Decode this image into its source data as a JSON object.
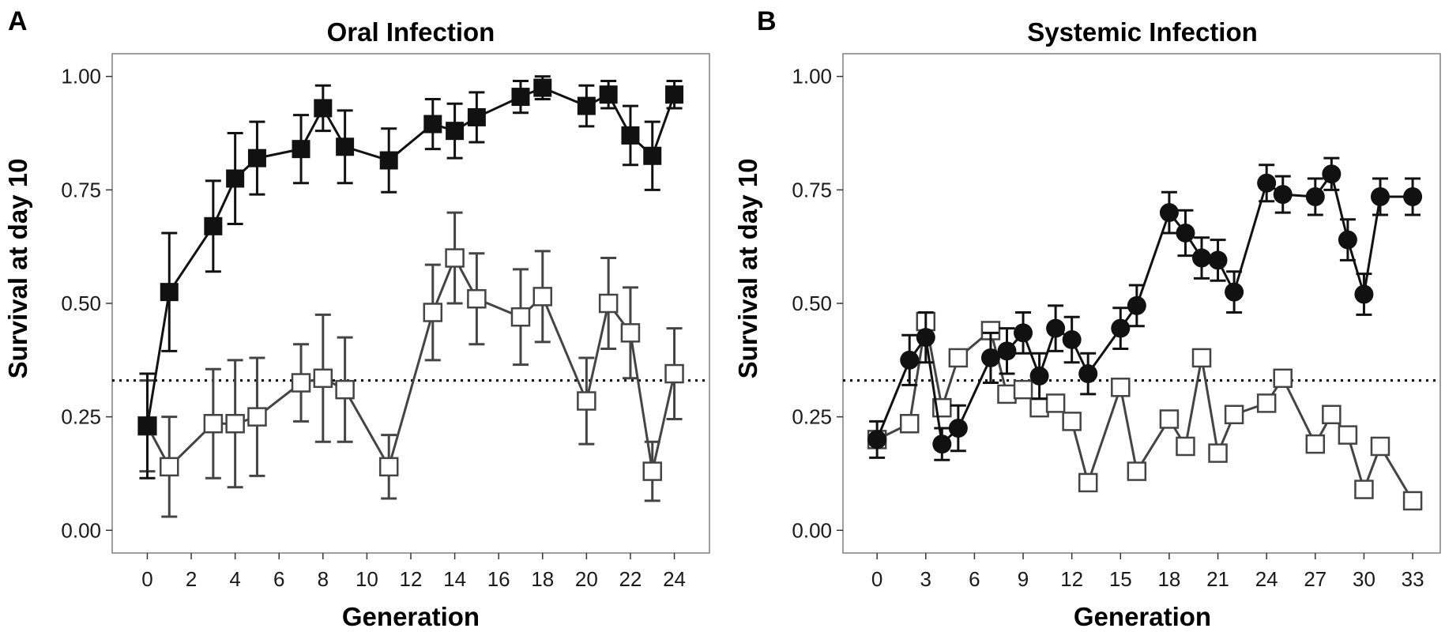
{
  "chart_data": [
    {
      "type": "line",
      "panel_label": "A",
      "title": "Oral Infection",
      "xlabel": "Generation",
      "ylabel": "Survival at day 10",
      "xlim": [
        -1.6,
        25.6
      ],
      "ylim": [
        -0.05,
        1.05
      ],
      "x_ticks": [
        0,
        2,
        4,
        6,
        8,
        10,
        12,
        14,
        16,
        18,
        20,
        22,
        24
      ],
      "y_ticks": [
        0,
        0.25,
        0.5,
        0.75,
        1.0
      ],
      "y_tick_labels": [
        "0.00",
        "0.25",
        "0.50",
        "0.75",
        "1.00"
      ],
      "reference_line": 0.33,
      "grid": false,
      "series": [
        {
          "marker": "filled-square",
          "color": "#111111",
          "x": [
            0,
            1,
            3,
            4,
            5,
            7,
            8,
            9,
            11,
            13,
            14,
            15,
            17,
            18,
            20,
            21,
            22,
            23,
            24
          ],
          "y": [
            0.23,
            0.525,
            0.67,
            0.775,
            0.82,
            0.84,
            0.93,
            0.845,
            0.815,
            0.895,
            0.88,
            0.91,
            0.955,
            0.975,
            0.935,
            0.96,
            0.87,
            0.825,
            0.96
          ],
          "err": [
            0.115,
            0.13,
            0.1,
            0.1,
            0.08,
            0.075,
            0.05,
            0.08,
            0.07,
            0.055,
            0.06,
            0.055,
            0.035,
            0.025,
            0.045,
            0.03,
            0.065,
            0.075,
            0.03
          ]
        },
        {
          "marker": "open-square",
          "color": "#444444",
          "x": [
            0,
            1,
            3,
            4,
            5,
            7,
            8,
            9,
            11,
            13,
            14,
            15,
            17,
            18,
            20,
            21,
            22,
            23,
            24
          ],
          "y": [
            0.23,
            0.14,
            0.235,
            0.235,
            0.25,
            0.325,
            0.335,
            0.31,
            0.14,
            0.48,
            0.6,
            0.51,
            0.47,
            0.515,
            0.285,
            0.5,
            0.435,
            0.13,
            0.345
          ],
          "err": [
            0.1,
            0.11,
            0.12,
            0.14,
            0.13,
            0.085,
            0.14,
            0.115,
            0.07,
            0.105,
            0.1,
            0.1,
            0.105,
            0.1,
            0.095,
            0.1,
            0.1,
            0.065,
            0.1
          ]
        }
      ]
    },
    {
      "type": "line",
      "panel_label": "B",
      "title": "Systemic Infection",
      "xlabel": "Generation",
      "ylabel": "Survival at day 10",
      "xlim": [
        -2.1,
        34.7
      ],
      "ylim": [
        -0.05,
        1.05
      ],
      "x_ticks": [
        0,
        3,
        6,
        9,
        12,
        15,
        18,
        21,
        24,
        27,
        30,
        33
      ],
      "y_ticks": [
        0,
        0.25,
        0.5,
        0.75,
        1.0
      ],
      "y_tick_labels": [
        "0.00",
        "0.25",
        "0.50",
        "0.75",
        "1.00"
      ],
      "reference_line": 0.33,
      "grid": false,
      "series": [
        {
          "marker": "filled-circle",
          "color": "#111111",
          "x": [
            0,
            2,
            3,
            4,
            5,
            7,
            8,
            9,
            10,
            11,
            12,
            13,
            15,
            16,
            18,
            19,
            20,
            21,
            22,
            24,
            25,
            27,
            28,
            29,
            30,
            31,
            33
          ],
          "y": [
            0.2,
            0.375,
            0.425,
            0.19,
            0.225,
            0.38,
            0.395,
            0.435,
            0.34,
            0.445,
            0.42,
            0.345,
            0.445,
            0.495,
            0.7,
            0.655,
            0.6,
            0.595,
            0.525,
            0.765,
            0.74,
            0.735,
            0.785,
            0.64,
            0.52,
            0.735,
            0.735
          ],
          "err": [
            0.04,
            0.055,
            0.055,
            0.035,
            0.05,
            0.055,
            0.05,
            0.045,
            0.05,
            0.05,
            0.05,
            0.045,
            0.045,
            0.045,
            0.045,
            0.05,
            0.045,
            0.045,
            0.045,
            0.04,
            0.04,
            0.04,
            0.035,
            0.045,
            0.045,
            0.04,
            0.04
          ]
        },
        {
          "marker": "open-square",
          "color": "#444444",
          "x": [
            0,
            2,
            3,
            4,
            5,
            7,
            8,
            9,
            10,
            11,
            12,
            13,
            15,
            16,
            18,
            19,
            20,
            21,
            22,
            24,
            25,
            27,
            28,
            29,
            30,
            31,
            33
          ],
          "y": [
            0.2,
            0.235,
            0.46,
            0.27,
            0.38,
            0.44,
            0.3,
            0.31,
            0.27,
            0.28,
            0.24,
            0.105,
            0.315,
            0.13,
            0.245,
            0.185,
            0.38,
            0.17,
            0.255,
            0.28,
            0.335,
            0.19,
            0.255,
            0.21,
            0.09,
            0.185,
            0.065
          ]
        }
      ]
    }
  ]
}
